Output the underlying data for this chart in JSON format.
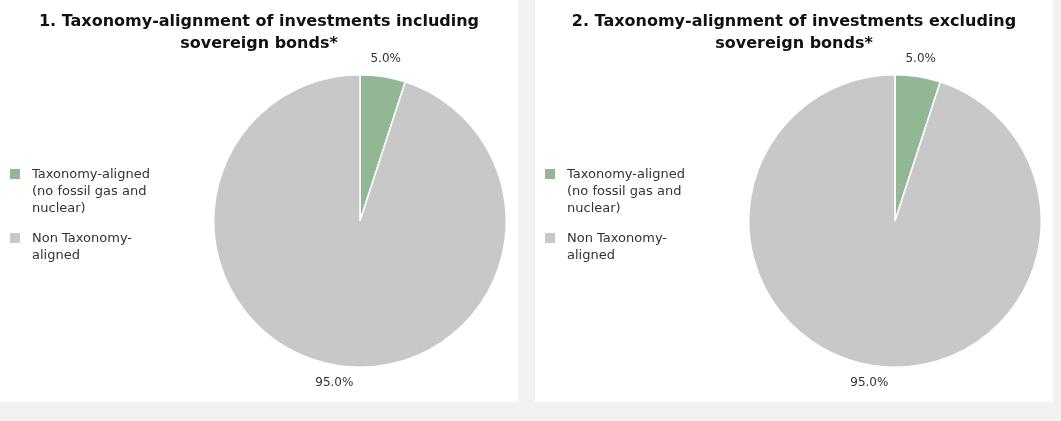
{
  "chart_data": [
    {
      "type": "pie",
      "title": "1. Taxonomy-alignment of investments including sovereign bonds*",
      "categories": [
        "Taxonomy-aligned (no fossil gas and nuclear)",
        "Non Taxonomy-aligned"
      ],
      "values": [
        5.0,
        95.0
      ],
      "colors": [
        "#93b795",
        "#c8c8c8"
      ],
      "value_labels": [
        "5.0%",
        "95.0%"
      ],
      "legend": "left"
    },
    {
      "type": "pie",
      "title": "2. Taxonomy-alignment of investments excluding sovereign bonds*",
      "categories": [
        "Taxonomy-aligned (no fossil gas and nuclear)",
        "Non Taxonomy-aligned"
      ],
      "values": [
        5.0,
        95.0
      ],
      "colors": [
        "#93b795",
        "#c8c8c8"
      ],
      "value_labels": [
        "5.0%",
        "95.0%"
      ],
      "legend": "left"
    }
  ]
}
